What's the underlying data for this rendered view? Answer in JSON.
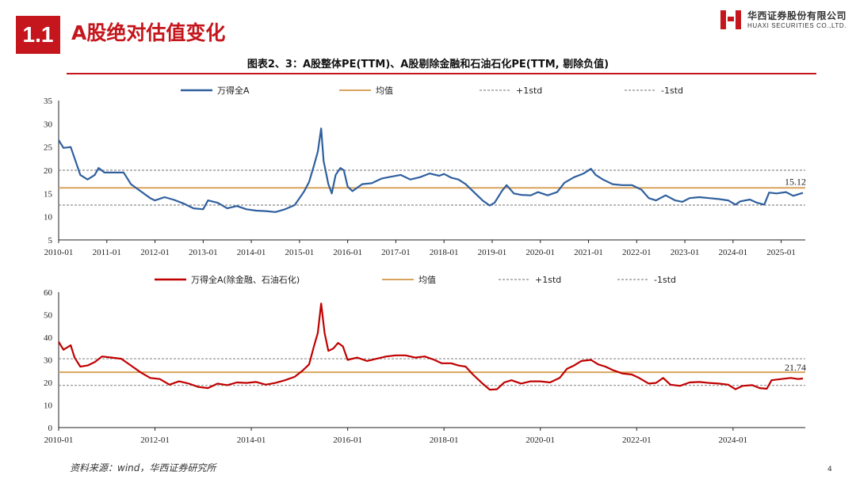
{
  "header": {
    "section_number": "1.1",
    "section_title": "A股绝对估值变化"
  },
  "logo": {
    "name_cn": "华西证券股份有限公司",
    "name_en": "HUAXI SECURITIES CO.,LTD."
  },
  "figure_title": "图表2、3：A股整体PE(TTM)、A股剔除金融和石油石化PE(TTM, 剔除负值)",
  "source": "资料来源：wind，华西证券研究所",
  "page_number": "4",
  "colors": {
    "brand_red": "#c4161c",
    "blue_series": "#2f5f9e",
    "red_series": "#c00000",
    "mean_line": "#d9a35e",
    "std_line": "#8c8c8c"
  },
  "chart_data": [
    {
      "type": "line",
      "title": "",
      "xlabel": "",
      "ylabel": "",
      "ylim": [
        5,
        35
      ],
      "yticks": [
        5,
        10,
        15,
        20,
        25,
        30,
        35
      ],
      "xlim": [
        2010.0,
        2025.5
      ],
      "xticks": [
        "2010-01",
        "2011-01",
        "2012-01",
        "2013-01",
        "2014-01",
        "2015-01",
        "2016-01",
        "2017-01",
        "2018-01",
        "2019-01",
        "2020-01",
        "2021-01",
        "2022-01",
        "2023-01",
        "2024-01",
        "2025-01"
      ],
      "legend": [
        "万得全A",
        "均值",
        "+1std",
        "-1std"
      ],
      "legend_position": "top",
      "series": [
        {
          "name": "万得全A",
          "style": "solid",
          "points": [
            [
              2010.0,
              26.5
            ],
            [
              2010.1,
              24.8
            ],
            [
              2010.25,
              25.0
            ],
            [
              2010.35,
              22.0
            ],
            [
              2010.45,
              19.0
            ],
            [
              2010.6,
              18.0
            ],
            [
              2010.75,
              19.0
            ],
            [
              2010.83,
              20.5
            ],
            [
              2010.95,
              19.5
            ],
            [
              2011.2,
              19.5
            ],
            [
              2011.35,
              19.5
            ],
            [
              2011.5,
              17.0
            ],
            [
              2011.7,
              15.5
            ],
            [
              2011.9,
              14.0
            ],
            [
              2012.0,
              13.5
            ],
            [
              2012.2,
              14.2
            ],
            [
              2012.4,
              13.6
            ],
            [
              2012.6,
              12.8
            ],
            [
              2012.8,
              11.8
            ],
            [
              2013.0,
              11.6
            ],
            [
              2013.1,
              13.5
            ],
            [
              2013.3,
              13.0
            ],
            [
              2013.5,
              11.8
            ],
            [
              2013.7,
              12.3
            ],
            [
              2013.9,
              11.6
            ],
            [
              2014.1,
              11.3
            ],
            [
              2014.3,
              11.2
            ],
            [
              2014.5,
              11.0
            ],
            [
              2014.7,
              11.6
            ],
            [
              2014.9,
              12.5
            ],
            [
              2015.0,
              14.0
            ],
            [
              2015.1,
              15.5
            ],
            [
              2015.2,
              17.5
            ],
            [
              2015.3,
              21.0
            ],
            [
              2015.38,
              24.0
            ],
            [
              2015.45,
              29.0
            ],
            [
              2015.5,
              22.0
            ],
            [
              2015.6,
              17.0
            ],
            [
              2015.67,
              15.0
            ],
            [
              2015.75,
              19.0
            ],
            [
              2015.85,
              20.5
            ],
            [
              2015.92,
              20.0
            ],
            [
              2016.0,
              16.5
            ],
            [
              2016.1,
              15.5
            ],
            [
              2016.3,
              17.0
            ],
            [
              2016.5,
              17.2
            ],
            [
              2016.7,
              18.2
            ],
            [
              2016.9,
              18.6
            ],
            [
              2017.1,
              19.0
            ],
            [
              2017.3,
              18.0
            ],
            [
              2017.5,
              18.5
            ],
            [
              2017.7,
              19.3
            ],
            [
              2017.9,
              18.8
            ],
            [
              2018.0,
              19.2
            ],
            [
              2018.15,
              18.4
            ],
            [
              2018.3,
              18.0
            ],
            [
              2018.45,
              17.0
            ],
            [
              2018.6,
              15.5
            ],
            [
              2018.8,
              13.5
            ],
            [
              2018.95,
              12.4
            ],
            [
              2019.05,
              13.0
            ],
            [
              2019.2,
              15.5
            ],
            [
              2019.3,
              16.8
            ],
            [
              2019.45,
              15.0
            ],
            [
              2019.6,
              14.7
            ],
            [
              2019.8,
              14.6
            ],
            [
              2019.95,
              15.3
            ],
            [
              2020.15,
              14.6
            ],
            [
              2020.35,
              15.3
            ],
            [
              2020.5,
              17.3
            ],
            [
              2020.7,
              18.5
            ],
            [
              2020.9,
              19.3
            ],
            [
              2021.05,
              20.3
            ],
            [
              2021.15,
              19.0
            ],
            [
              2021.3,
              18.0
            ],
            [
              2021.5,
              17.0
            ],
            [
              2021.7,
              16.8
            ],
            [
              2021.9,
              16.8
            ],
            [
              2022.1,
              15.8
            ],
            [
              2022.25,
              14.0
            ],
            [
              2022.4,
              13.5
            ],
            [
              2022.6,
              14.6
            ],
            [
              2022.8,
              13.5
            ],
            [
              2022.95,
              13.2
            ],
            [
              2023.1,
              14.0
            ],
            [
              2023.3,
              14.2
            ],
            [
              2023.5,
              14.0
            ],
            [
              2023.7,
              13.8
            ],
            [
              2023.9,
              13.5
            ],
            [
              2024.05,
              12.6
            ],
            [
              2024.15,
              13.3
            ],
            [
              2024.35,
              13.7
            ],
            [
              2024.5,
              13.0
            ],
            [
              2024.65,
              12.6
            ],
            [
              2024.75,
              15.2
            ],
            [
              2024.9,
              15.0
            ],
            [
              2025.1,
              15.3
            ],
            [
              2025.25,
              14.5
            ],
            [
              2025.45,
              15.12
            ]
          ]
        },
        {
          "name": "均值",
          "style": "solid",
          "value": 16.2
        },
        {
          "name": "+1std",
          "style": "dashed",
          "value": 20.0
        },
        {
          "name": "-1std",
          "style": "dashed",
          "value": 12.5
        }
      ],
      "annotation": {
        "label": "15.12",
        "x": 2025.45,
        "y": 15.12
      }
    },
    {
      "type": "line",
      "title": "",
      "xlabel": "",
      "ylabel": "",
      "ylim": [
        0,
        60
      ],
      "yticks": [
        0,
        10,
        20,
        30,
        40,
        50,
        60
      ],
      "xlim": [
        2010.0,
        2025.5
      ],
      "xticks": [
        "2010-01",
        "2012-01",
        "2014-01",
        "2016-01",
        "2018-01",
        "2020-01",
        "2022-01",
        "2024-01"
      ],
      "legend": [
        "万得全A(除金融、石油石化)",
        "均值",
        "+1std",
        "-1std"
      ],
      "legend_position": "top",
      "series": [
        {
          "name": "万得全A(除金融、石油石化)",
          "style": "solid",
          "points": [
            [
              2010.0,
              38.0
            ],
            [
              2010.1,
              34.5
            ],
            [
              2010.25,
              36.5
            ],
            [
              2010.33,
              31.0
            ],
            [
              2010.45,
              27.0
            ],
            [
              2010.6,
              27.5
            ],
            [
              2010.75,
              29.0
            ],
            [
              2010.9,
              31.5
            ],
            [
              2011.1,
              31.0
            ],
            [
              2011.3,
              30.5
            ],
            [
              2011.5,
              27.5
            ],
            [
              2011.7,
              24.5
            ],
            [
              2011.9,
              22.0
            ],
            [
              2012.1,
              21.5
            ],
            [
              2012.3,
              19.0
            ],
            [
              2012.5,
              20.5
            ],
            [
              2012.7,
              19.5
            ],
            [
              2012.9,
              18.0
            ],
            [
              2013.1,
              17.5
            ],
            [
              2013.3,
              19.5
            ],
            [
              2013.5,
              18.8
            ],
            [
              2013.7,
              20.0
            ],
            [
              2013.9,
              19.8
            ],
            [
              2014.1,
              20.2
            ],
            [
              2014.3,
              19.0
            ],
            [
              2014.5,
              19.8
            ],
            [
              2014.7,
              21.0
            ],
            [
              2014.9,
              22.5
            ],
            [
              2015.05,
              25.0
            ],
            [
              2015.2,
              28.0
            ],
            [
              2015.3,
              36.0
            ],
            [
              2015.38,
              42.0
            ],
            [
              2015.45,
              55.0
            ],
            [
              2015.52,
              42.0
            ],
            [
              2015.6,
              34.0
            ],
            [
              2015.7,
              35.0
            ],
            [
              2015.8,
              37.5
            ],
            [
              2015.9,
              36.0
            ],
            [
              2016.0,
              30.0
            ],
            [
              2016.2,
              31.0
            ],
            [
              2016.4,
              29.5
            ],
            [
              2016.6,
              30.5
            ],
            [
              2016.8,
              31.5
            ],
            [
              2017.0,
              32.0
            ],
            [
              2017.2,
              32.0
            ],
            [
              2017.4,
              31.0
            ],
            [
              2017.6,
              31.5
            ],
            [
              2017.8,
              30.0
            ],
            [
              2017.95,
              28.5
            ],
            [
              2018.15,
              28.5
            ],
            [
              2018.3,
              27.5
            ],
            [
              2018.45,
              27.0
            ],
            [
              2018.6,
              23.5
            ],
            [
              2018.8,
              19.5
            ],
            [
              2018.95,
              16.8
            ],
            [
              2019.1,
              17.0
            ],
            [
              2019.25,
              20.0
            ],
            [
              2019.4,
              21.0
            ],
            [
              2019.6,
              19.5
            ],
            [
              2019.8,
              20.5
            ],
            [
              2020.0,
              20.5
            ],
            [
              2020.2,
              20.0
            ],
            [
              2020.4,
              22.0
            ],
            [
              2020.55,
              26.0
            ],
            [
              2020.7,
              27.5
            ],
            [
              2020.85,
              29.5
            ],
            [
              2021.05,
              30.0
            ],
            [
              2021.2,
              28.0
            ],
            [
              2021.35,
              27.0
            ],
            [
              2021.5,
              25.5
            ],
            [
              2021.7,
              24.0
            ],
            [
              2021.9,
              23.5
            ],
            [
              2022.05,
              22.0
            ],
            [
              2022.25,
              19.5
            ],
            [
              2022.4,
              19.8
            ],
            [
              2022.55,
              22.0
            ],
            [
              2022.7,
              19.0
            ],
            [
              2022.9,
              18.5
            ],
            [
              2023.1,
              20.0
            ],
            [
              2023.3,
              20.2
            ],
            [
              2023.5,
              19.8
            ],
            [
              2023.7,
              19.5
            ],
            [
              2023.9,
              19.0
            ],
            [
              2024.05,
              17.0
            ],
            [
              2024.2,
              18.5
            ],
            [
              2024.4,
              18.8
            ],
            [
              2024.55,
              17.5
            ],
            [
              2024.7,
              17.2
            ],
            [
              2024.8,
              21.0
            ],
            [
              2025.0,
              21.5
            ],
            [
              2025.2,
              22.0
            ],
            [
              2025.35,
              21.5
            ],
            [
              2025.45,
              21.74
            ]
          ]
        },
        {
          "name": "均值",
          "style": "solid",
          "value": 24.5
        },
        {
          "name": "+1std",
          "style": "dashed",
          "value": 30.5
        },
        {
          "name": "-1std",
          "style": "dashed",
          "value": 18.7
        }
      ],
      "annotation": {
        "label": "21.74",
        "x": 2025.45,
        "y": 21.74
      }
    }
  ]
}
